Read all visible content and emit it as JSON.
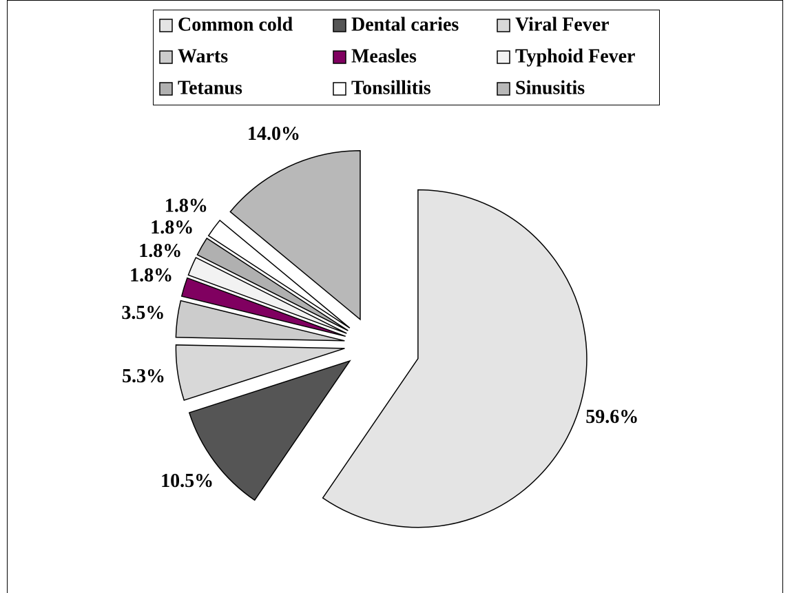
{
  "chart_data": {
    "type": "pie",
    "categories": [
      "Common cold",
      "Dental caries",
      "Viral Fever",
      "Warts",
      "Measles",
      "Typhoid Fever",
      "Tetanus",
      "Tonsillitis",
      "Sinusitis"
    ],
    "values": [
      59.6,
      10.5,
      5.3,
      3.5,
      1.8,
      1.8,
      1.8,
      1.8,
      14.0
    ],
    "value_labels": [
      "59.6%",
      "10.5%",
      "5.3%",
      "3.5%",
      "1.8%",
      "1.8%",
      "1.8%",
      "1.8%",
      "14.0%"
    ],
    "colors": [
      "#e4e4e4",
      "#555555",
      "#d8d8d8",
      "#cccccc",
      "#800060",
      "#f2f2f2",
      "#b0b0b0",
      "#ffffff",
      "#b8b8b8"
    ],
    "legend": "top"
  }
}
